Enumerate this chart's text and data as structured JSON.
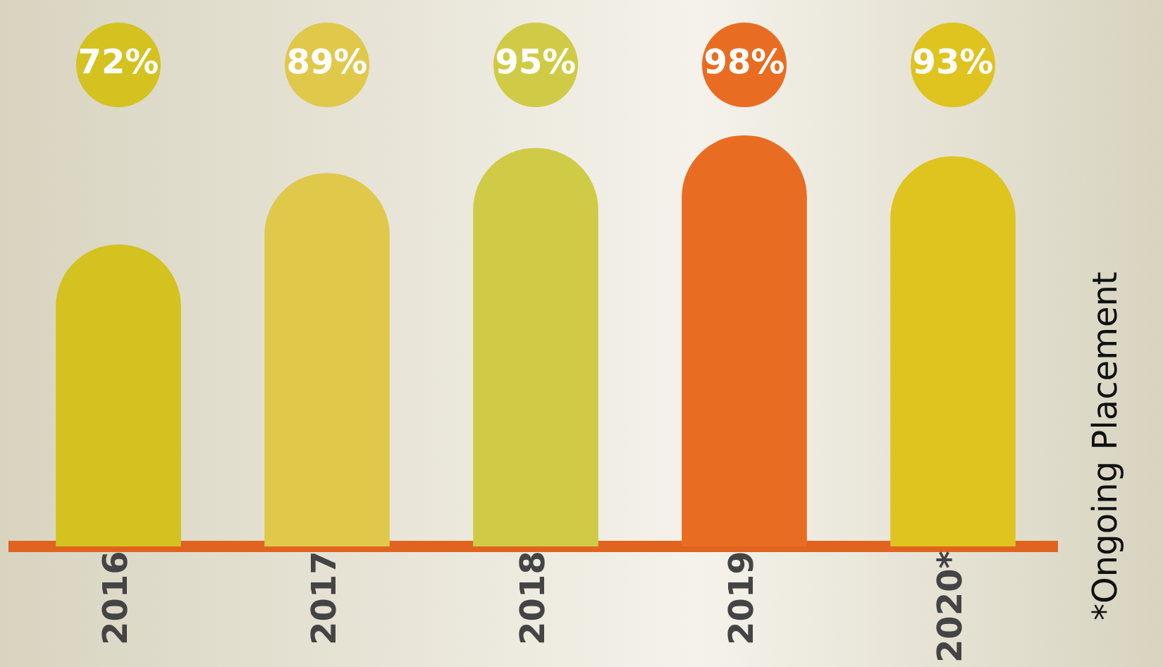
{
  "chart_data": {
    "type": "bar",
    "categories": [
      "2016",
      "2017",
      "2018",
      "2019",
      "2020*"
    ],
    "values": [
      72,
      89,
      95,
      98,
      93
    ],
    "colors": [
      "#d3c21f",
      "#e0c84b",
      "#d0cb46",
      "#e86d22",
      "#dfc31f"
    ],
    "value_labels": [
      "72%",
      "89%",
      "95%",
      "98%",
      "93%"
    ],
    "tick_labels": "x",
    "grid": false,
    "legend": false,
    "annotations": [
      "*Ongoing Placement"
    ]
  }
}
